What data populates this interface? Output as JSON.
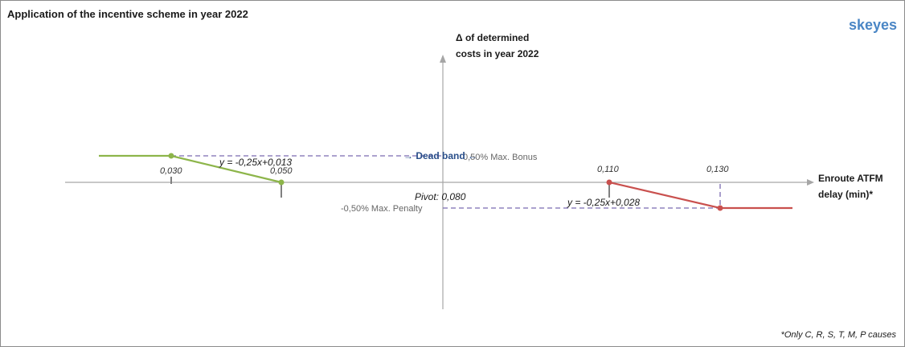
{
  "header": {
    "title": "Application of the incentive scheme in year 2022",
    "brand": "skeyes"
  },
  "axes": {
    "y_label_line1": "Δ of determined",
    "y_label_line2": "costs in year 2022",
    "x_label_line1": "Enroute ATFM",
    "x_label_line2": "delay (min)*"
  },
  "ticks": {
    "t1": "0,030",
    "t2": "0,050",
    "t3": "0,110",
    "t4": "0,130"
  },
  "annotations": {
    "eq_left": "y = -0,25x+0,013",
    "eq_right": "y = -0,25x+0,028",
    "pivot": "Pivot: 0,080",
    "dead_band": "→ Dead band ←",
    "max_bonus": "0,50% Max. Bonus",
    "max_penalty": "-0,50% Max. Penalty"
  },
  "footnote": "*Only C, R, S, T, M, P causes",
  "colors": {
    "bonus": "#8db54a",
    "penalty": "#c9504e",
    "guide": "#7b6bb0",
    "axis": "#a6a6a6"
  }
}
